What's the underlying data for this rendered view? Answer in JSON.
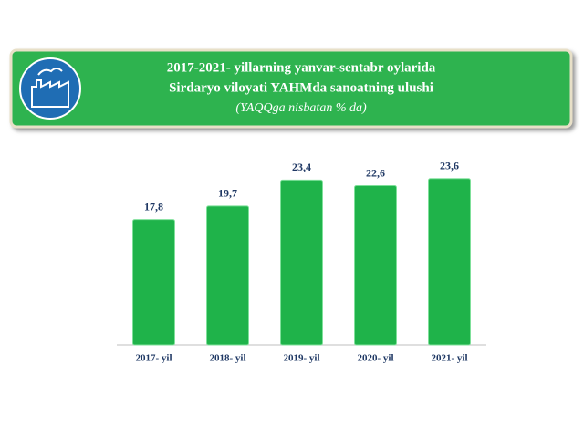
{
  "chart_data": {
    "type": "bar",
    "title": [
      "2017-2021- yillarning yanvar-sentabr oylarida",
      "Sirdaryo viloyati YAHMda sanoatning ulushi"
    ],
    "subtitle": "(YAQQga nisbatan % da)",
    "categories": [
      "2017- yil",
      "2018- yil",
      "2019- yil",
      "2020- yil",
      "2021- yil"
    ],
    "values": [
      17.8,
      19.7,
      23.4,
      22.6,
      23.6
    ],
    "value_labels": [
      "17,8",
      "19,7",
      "23,4",
      "22,6",
      "23,6"
    ],
    "color": "#1fb34a"
  }
}
